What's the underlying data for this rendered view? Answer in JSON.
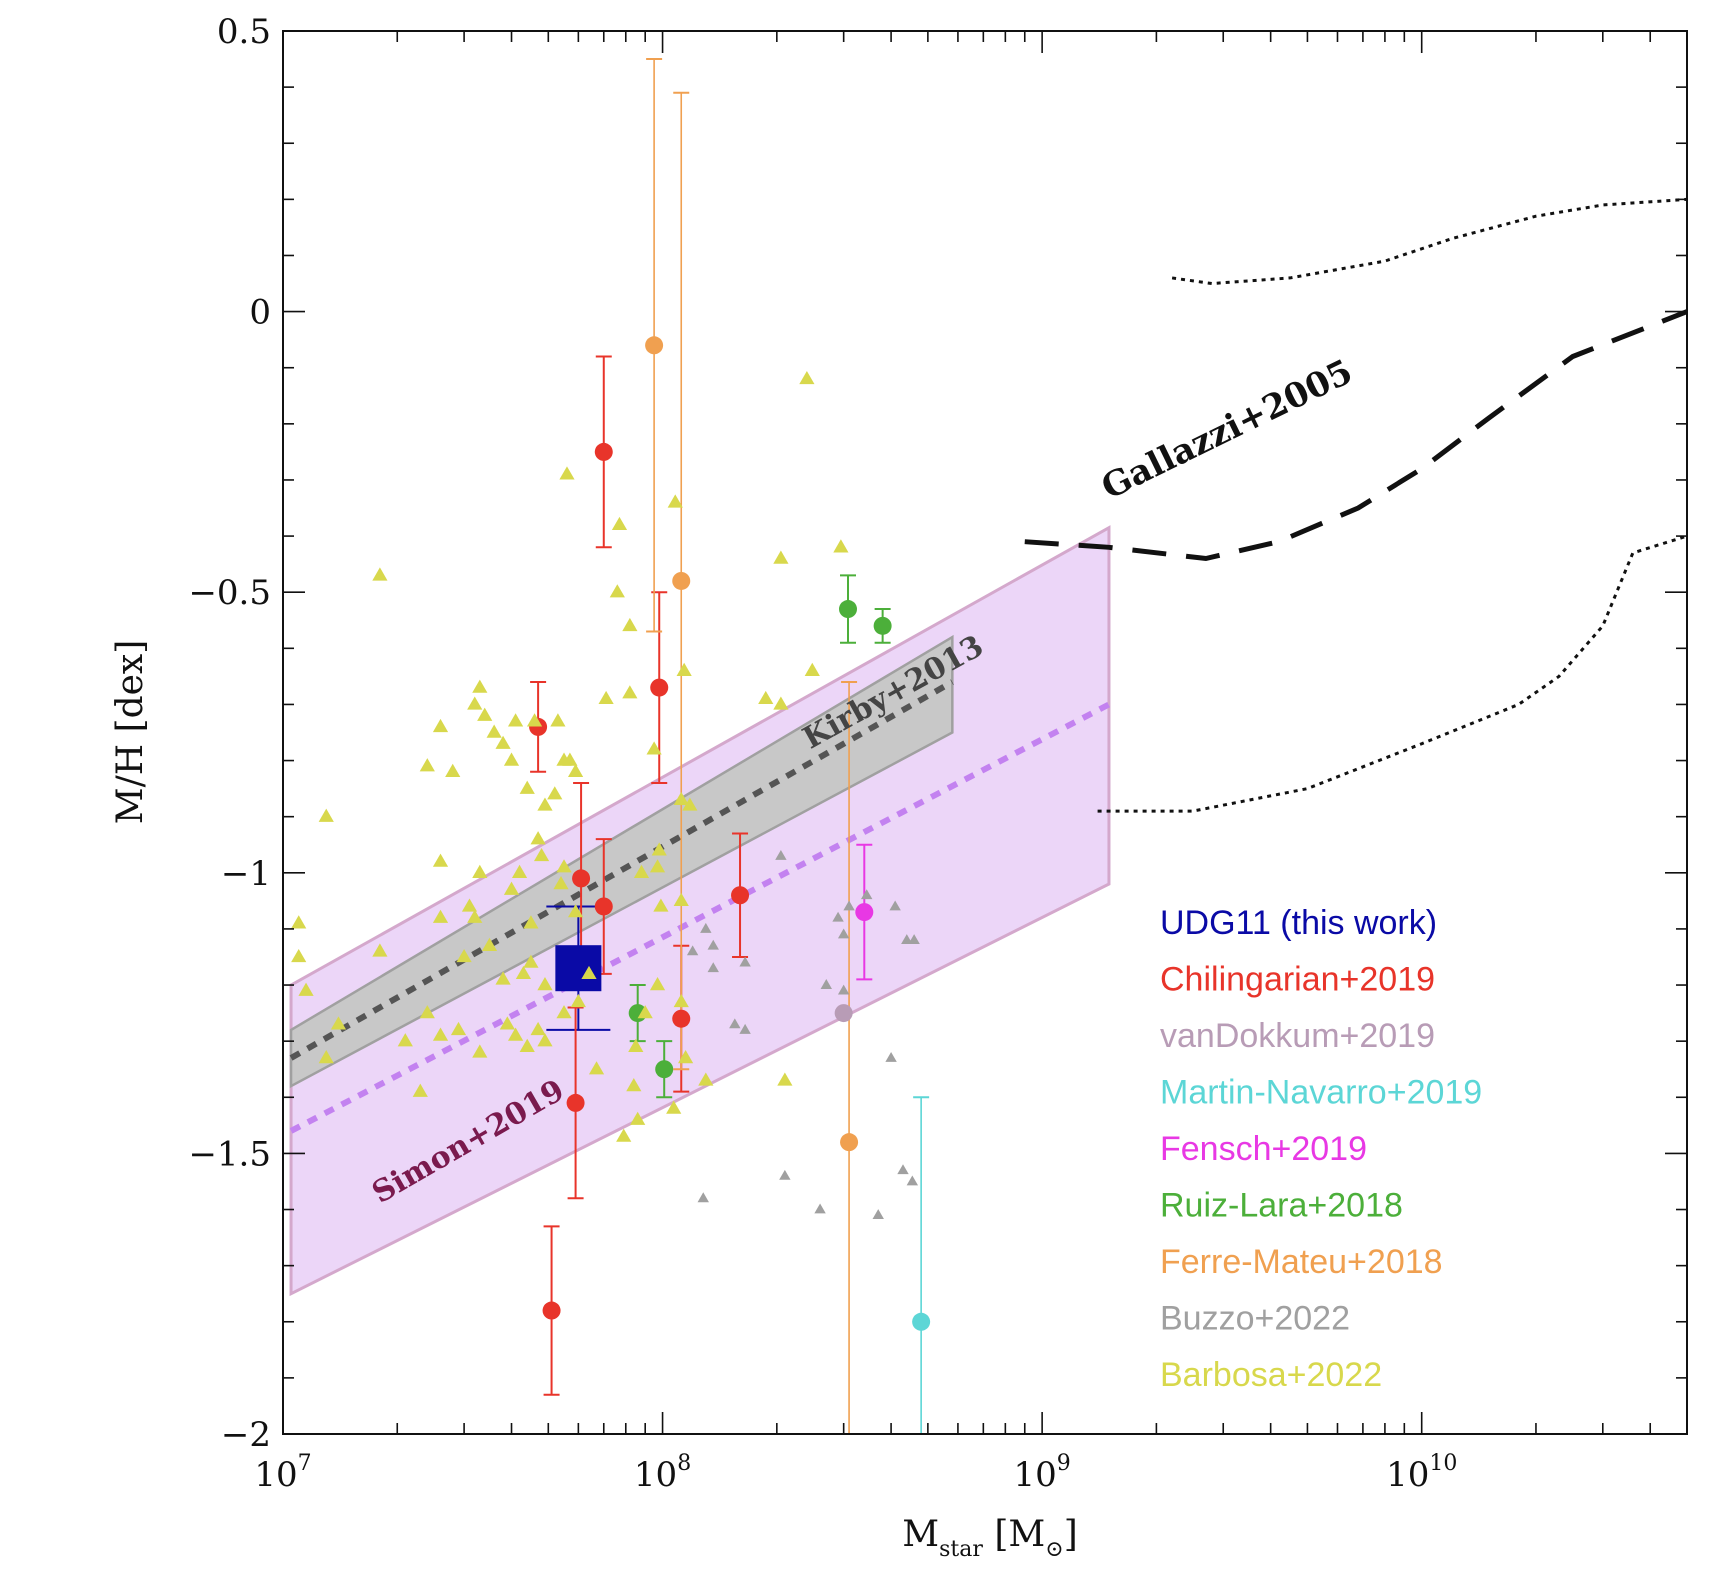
{
  "chart_data": {
    "type": "scatter",
    "title": "",
    "xlabel": {
      "main": "M",
      "sub": "star",
      "unit_open": "[M",
      "unit_sub": "⊙",
      "unit_close": "]"
    },
    "ylabel": "M/H [dex]",
    "xscale": "log",
    "xlim": [
      10000000,
      50000000000
    ],
    "ylim": [
      -2,
      0.5
    ],
    "x_ticks": [
      {
        "value": 10000000,
        "base": "10",
        "exp": "7"
      },
      {
        "value": 100000000,
        "base": "10",
        "exp": "8"
      },
      {
        "value": 1000000000,
        "base": "10",
        "exp": "9"
      },
      {
        "value": 10000000000,
        "base": "10",
        "exp": "10"
      }
    ],
    "y_ticks": [
      {
        "value": 0.5,
        "label": "0.5"
      },
      {
        "value": 0,
        "label": "0"
      },
      {
        "value": -0.5,
        "label": "−0.5"
      },
      {
        "value": -1,
        "label": "−1"
      },
      {
        "value": -1.5,
        "label": "−1.5"
      },
      {
        "value": -2,
        "label": "−2"
      }
    ],
    "legend_position": "lower-right",
    "legend": [
      {
        "label": "UDG11 (this work)",
        "color": "#0a0aa6"
      },
      {
        "label": "Chilingarian+2019",
        "color": "#e8342a"
      },
      {
        "label": "vanDokkum+2019",
        "color": "#b89cb6"
      },
      {
        "label": "Martin-Navarro+2019",
        "color": "#5cd6d6"
      },
      {
        "label": "Fensch+2019",
        "color": "#e838e4"
      },
      {
        "label": "Ruiz-Lara+2018",
        "color": "#4caf3a"
      },
      {
        "label": "Ferre-Mateu+2018",
        "color": "#f0a050"
      },
      {
        "label": "Buzzo+2022",
        "color": "#a0a0a0"
      },
      {
        "label": "Barbosa+2022",
        "color": "#d8d84c"
      }
    ],
    "bands": [
      {
        "name": "Simon+2019",
        "fill": "#ecd6f8",
        "stroke": "#d4a8cc",
        "upper": [
          [
            10500000,
            -1.2
          ],
          [
            1500000000,
            -0.385
          ]
        ],
        "lower": [
          [
            10500000,
            -1.75
          ],
          [
            1500000000,
            -1.02
          ]
        ]
      },
      {
        "name": "Kirby+2013",
        "fill": "#c8c8c8",
        "stroke": "#a0a0a0",
        "upper": [
          [
            10500000,
            -1.28
          ],
          [
            580000000,
            -0.58
          ]
        ],
        "lower": [
          [
            10500000,
            -1.38
          ],
          [
            580000000,
            -0.75
          ]
        ]
      }
    ],
    "lines": [
      {
        "name": "Kirby+2013 relation",
        "style": "dotted-thick",
        "color": "#555555",
        "points": [
          [
            10500000,
            -1.33
          ],
          [
            580000000,
            -0.66
          ]
        ]
      },
      {
        "name": "Simon+2019 relation",
        "style": "dotted-thick",
        "color": "#c382f0",
        "points": [
          [
            10500000,
            -1.46
          ],
          [
            1500000000,
            -0.7
          ]
        ]
      },
      {
        "name": "Gallazzi+2005 median",
        "style": "long-dash",
        "color": "#111111",
        "points": [
          [
            900000000,
            -0.41
          ],
          [
            1500000000,
            -0.42
          ],
          [
            2700000000,
            -0.44
          ],
          [
            4200000000,
            -0.41
          ],
          [
            6800000000,
            -0.35
          ],
          [
            10000000000,
            -0.28
          ],
          [
            15000000000,
            -0.19
          ],
          [
            25000000000,
            -0.08
          ],
          [
            50000000000,
            0.0
          ]
        ]
      },
      {
        "name": "Gallazzi+2005 upper",
        "style": "fine-dotted",
        "color": "#111111",
        "points": [
          [
            2200000000,
            0.06
          ],
          [
            2800000000,
            0.05
          ],
          [
            4500000000,
            0.06
          ],
          [
            8000000000,
            0.09
          ],
          [
            12000000000,
            0.13
          ],
          [
            20000000000,
            0.17
          ],
          [
            30000000000,
            0.19
          ],
          [
            50000000000,
            0.2
          ]
        ]
      },
      {
        "name": "Gallazzi+2005 lower",
        "style": "fine-dotted",
        "color": "#111111",
        "points": [
          [
            1400000000,
            -0.89
          ],
          [
            2500000000,
            -0.89
          ],
          [
            5000000000,
            -0.85
          ],
          [
            10000000000,
            -0.77
          ],
          [
            18000000000,
            -0.7
          ],
          [
            23000000000,
            -0.65
          ],
          [
            30000000000,
            -0.56
          ],
          [
            36000000000,
            -0.43
          ],
          [
            50000000000,
            -0.4
          ]
        ]
      }
    ],
    "annotations": [
      {
        "text": "Gallazzi+2005",
        "x": 1500000000,
        "y": -0.335,
        "angle": -26,
        "color": "#111111",
        "size": 34
      },
      {
        "text": "Kirby+2013",
        "x": 245000000,
        "y": -0.78,
        "angle": -29,
        "color": "#444444",
        "size": 30
      },
      {
        "text": "Simon+2019",
        "x": 18000000,
        "y": -1.59,
        "angle": -30,
        "color": "#7a1a4e",
        "size": 30
      }
    ],
    "series": [
      {
        "name": "UDG11 (this work)",
        "marker": "square",
        "color": "#0a0aa6",
        "points": [
          {
            "x": 60000000,
            "y": -1.17,
            "err_lo": 0.11,
            "err_hi": 0.11
          }
        ]
      },
      {
        "name": "Chilingarian+2019",
        "marker": "circle",
        "color": "#e8342a",
        "points": [
          {
            "x": 70000000,
            "y": -0.25,
            "err_lo": 0.17,
            "err_hi": 0.17
          },
          {
            "x": 47000000,
            "y": -0.74,
            "err_lo": 0.08,
            "err_hi": 0.08
          },
          {
            "x": 98000000,
            "y": -0.67,
            "err_lo": 0.17,
            "err_hi": 0.17
          },
          {
            "x": 61000000,
            "y": -1.01,
            "err_lo": 0.17,
            "err_hi": 0.17
          },
          {
            "x": 70000000,
            "y": -1.06,
            "err_lo": 0.12,
            "err_hi": 0.12
          },
          {
            "x": 160000000,
            "y": -1.04,
            "err_lo": 0.11,
            "err_hi": 0.11
          },
          {
            "x": 112000000,
            "y": -1.26,
            "err_lo": 0.13,
            "err_hi": 0.13
          },
          {
            "x": 59000000,
            "y": -1.41,
            "err_lo": 0.17,
            "err_hi": 0.17
          },
          {
            "x": 51000000,
            "y": -1.78,
            "err_lo": 0.15,
            "err_hi": 0.15
          }
        ]
      },
      {
        "name": "vanDokkum+2019",
        "marker": "circle",
        "color": "#b89cb6",
        "points": [
          {
            "x": 300000000,
            "y": -1.25
          }
        ]
      },
      {
        "name": "Martin-Navarro+2019",
        "marker": "circle",
        "color": "#5cd6d6",
        "points": [
          {
            "x": 480000000,
            "y": -1.8,
            "err_lo": 0.2,
            "err_hi": 0.4
          }
        ]
      },
      {
        "name": "Fensch+2019",
        "marker": "circle",
        "color": "#e838e4",
        "points": [
          {
            "x": 340000000,
            "y": -1.07,
            "err_lo": 0.12,
            "err_hi": 0.12
          }
        ]
      },
      {
        "name": "Ruiz-Lara+2018",
        "marker": "circle",
        "color": "#4caf3a",
        "points": [
          {
            "x": 308000000,
            "y": -0.53,
            "err_lo": 0.06,
            "err_hi": 0.06
          },
          {
            "x": 380000000,
            "y": -0.56,
            "err_lo": 0.03,
            "err_hi": 0.03
          },
          {
            "x": 86000000,
            "y": -1.25,
            "err_lo": 0.05,
            "err_hi": 0.05
          },
          {
            "x": 101000000,
            "y": -1.35,
            "err_lo": 0.05,
            "err_hi": 0.05
          }
        ]
      },
      {
        "name": "Ferre-Mateu+2018",
        "marker": "circle",
        "color": "#f0a050",
        "points": [
          {
            "x": 95000000,
            "y": -0.06,
            "err_lo": 0.51,
            "err_hi": 0.51
          },
          {
            "x": 112000000,
            "y": -0.48,
            "err_lo": 0.87,
            "err_hi": 0.87
          },
          {
            "x": 310000000,
            "y": -1.48,
            "err_lo": 0.82,
            "err_hi": 0.82
          }
        ]
      },
      {
        "name": "Buzzo+2022",
        "marker": "triangle",
        "color": "#a0a0a0",
        "points": [
          {
            "x": 130000000,
            "y": -1.1
          },
          {
            "x": 136000000,
            "y": -1.13
          },
          {
            "x": 120000000,
            "y": -1.14
          },
          {
            "x": 136000000,
            "y": -1.17
          },
          {
            "x": 165000000,
            "y": -1.16
          },
          {
            "x": 205000000,
            "y": -0.97
          },
          {
            "x": 290000000,
            "y": -1.08
          },
          {
            "x": 300000000,
            "y": -1.11
          },
          {
            "x": 310000000,
            "y": -1.06
          },
          {
            "x": 345000000,
            "y": -1.04
          },
          {
            "x": 410000000,
            "y": -1.06
          },
          {
            "x": 440000000,
            "y": -1.12
          },
          {
            "x": 460000000,
            "y": -1.12
          },
          {
            "x": 270000000,
            "y": -1.2
          },
          {
            "x": 300000000,
            "y": -1.21
          },
          {
            "x": 115000000,
            "y": -1.33
          },
          {
            "x": 155000000,
            "y": -1.27
          },
          {
            "x": 165000000,
            "y": -1.28
          },
          {
            "x": 400000000,
            "y": -1.33
          },
          {
            "x": 210000000,
            "y": -1.54
          },
          {
            "x": 260000000,
            "y": -1.6
          },
          {
            "x": 370000000,
            "y": -1.61
          },
          {
            "x": 430000000,
            "y": -1.53
          },
          {
            "x": 455000000,
            "y": -1.55
          },
          {
            "x": 128000000,
            "y": -1.58
          }
        ]
      },
      {
        "name": "Barbosa+2022",
        "marker": "triangle",
        "color": "#d8d84c",
        "points": [
          {
            "x": 240000000,
            "y": -0.12
          },
          {
            "x": 56000000,
            "y": -0.29
          },
          {
            "x": 108000000,
            "y": -0.34
          },
          {
            "x": 77000000,
            "y": -0.38
          },
          {
            "x": 18000000,
            "y": -0.47
          },
          {
            "x": 295000000,
            "y": -0.42
          },
          {
            "x": 205000000,
            "y": -0.44
          },
          {
            "x": 76000000,
            "y": -0.5
          },
          {
            "x": 82000000,
            "y": -0.56
          },
          {
            "x": 114000000,
            "y": -0.64
          },
          {
            "x": 248000000,
            "y": -0.64
          },
          {
            "x": 82000000,
            "y": -0.68
          },
          {
            "x": 71000000,
            "y": -0.69
          },
          {
            "x": 187000000,
            "y": -0.69
          },
          {
            "x": 205000000,
            "y": -0.7
          },
          {
            "x": 33000000,
            "y": -0.67
          },
          {
            "x": 32000000,
            "y": -0.7
          },
          {
            "x": 34000000,
            "y": -0.72
          },
          {
            "x": 26000000,
            "y": -0.74
          },
          {
            "x": 36000000,
            "y": -0.75
          },
          {
            "x": 38000000,
            "y": -0.77
          },
          {
            "x": 41000000,
            "y": -0.73
          },
          {
            "x": 46000000,
            "y": -0.73
          },
          {
            "x": 53000000,
            "y": -0.73
          },
          {
            "x": 57000000,
            "y": -0.8
          },
          {
            "x": 55000000,
            "y": -0.8
          },
          {
            "x": 24000000,
            "y": -0.81
          },
          {
            "x": 28000000,
            "y": -0.82
          },
          {
            "x": 40000000,
            "y": -0.8
          },
          {
            "x": 44000000,
            "y": -0.85
          },
          {
            "x": 49000000,
            "y": -0.88
          },
          {
            "x": 52000000,
            "y": -0.86
          },
          {
            "x": 59000000,
            "y": -0.82
          },
          {
            "x": 13000000,
            "y": -0.9
          },
          {
            "x": 47000000,
            "y": -0.94
          },
          {
            "x": 26000000,
            "y": -0.98
          },
          {
            "x": 33000000,
            "y": -1.0
          },
          {
            "x": 42000000,
            "y": -1.0
          },
          {
            "x": 48000000,
            "y": -0.97
          },
          {
            "x": 55000000,
            "y": -0.99
          },
          {
            "x": 95000000,
            "y": -0.78
          },
          {
            "x": 97000000,
            "y": -0.99
          },
          {
            "x": 112000000,
            "y": -0.87
          },
          {
            "x": 118000000,
            "y": -0.88
          },
          {
            "x": 88000000,
            "y": -1.0
          },
          {
            "x": 98000000,
            "y": -0.96
          },
          {
            "x": 31000000,
            "y": -1.06
          },
          {
            "x": 32000000,
            "y": -1.08
          },
          {
            "x": 26000000,
            "y": -1.08
          },
          {
            "x": 40000000,
            "y": -1.03
          },
          {
            "x": 45000000,
            "y": -1.09
          },
          {
            "x": 54000000,
            "y": -1.02
          },
          {
            "x": 59000000,
            "y": -1.07
          },
          {
            "x": 99000000,
            "y": -1.06
          },
          {
            "x": 112000000,
            "y": -1.05
          },
          {
            "x": 11000000,
            "y": -1.09
          },
          {
            "x": 11000000,
            "y": -1.15
          },
          {
            "x": 18000000,
            "y": -1.14
          },
          {
            "x": 30000000,
            "y": -1.15
          },
          {
            "x": 35000000,
            "y": -1.13
          },
          {
            "x": 38000000,
            "y": -1.19
          },
          {
            "x": 43000000,
            "y": -1.18
          },
          {
            "x": 45000000,
            "y": -1.16
          },
          {
            "x": 49000000,
            "y": -1.2
          },
          {
            "x": 60000000,
            "y": -1.23
          },
          {
            "x": 64000000,
            "y": -1.18
          },
          {
            "x": 97000000,
            "y": -1.2
          },
          {
            "x": 112000000,
            "y": -1.23
          },
          {
            "x": 11500000,
            "y": -1.21
          },
          {
            "x": 14000000,
            "y": -1.27
          },
          {
            "x": 21000000,
            "y": -1.3
          },
          {
            "x": 24000000,
            "y": -1.25
          },
          {
            "x": 26000000,
            "y": -1.29
          },
          {
            "x": 29000000,
            "y": -1.28
          },
          {
            "x": 33000000,
            "y": -1.32
          },
          {
            "x": 39000000,
            "y": -1.27
          },
          {
            "x": 41000000,
            "y": -1.29
          },
          {
            "x": 44000000,
            "y": -1.31
          },
          {
            "x": 47000000,
            "y": -1.28
          },
          {
            "x": 49000000,
            "y": -1.3
          },
          {
            "x": 55000000,
            "y": -1.25
          },
          {
            "x": 13000000,
            "y": -1.33
          },
          {
            "x": 85000000,
            "y": -1.31
          },
          {
            "x": 90000000,
            "y": -1.25
          },
          {
            "x": 115000000,
            "y": -1.33
          },
          {
            "x": 84000000,
            "y": -1.38
          },
          {
            "x": 130000000,
            "y": -1.37
          },
          {
            "x": 210000000,
            "y": -1.37
          },
          {
            "x": 107000000,
            "y": -1.42
          },
          {
            "x": 86000000,
            "y": -1.44
          },
          {
            "x": 79000000,
            "y": -1.47
          },
          {
            "x": 67000000,
            "y": -1.35
          },
          {
            "x": 23000000,
            "y": -1.39
          }
        ]
      }
    ]
  }
}
